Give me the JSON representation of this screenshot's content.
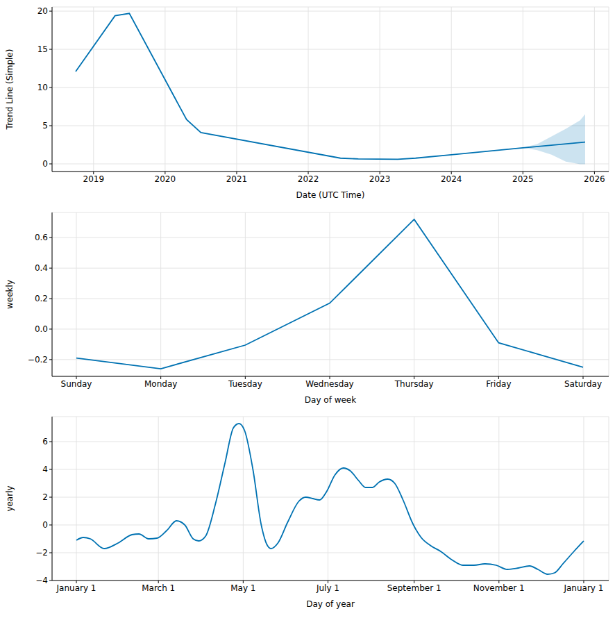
{
  "chart_data": [
    {
      "type": "line",
      "y_label": "Trend Line (Simple)",
      "x_label": "Date (UTC Time)",
      "x": [
        2018.75,
        2019.3,
        2019.5,
        2020.3,
        2020.5,
        2022.45,
        2022.7,
        2023.25,
        2023.5,
        2024.0,
        2025.0,
        2025.87
      ],
      "values": [
        12.1,
        19.4,
        19.7,
        5.8,
        4.1,
        0.75,
        0.65,
        0.6,
        0.75,
        1.2,
        2.1,
        2.85
      ],
      "interval": {
        "x": [
          2025.0,
          2025.2,
          2025.4,
          2025.6,
          2025.8,
          2025.87
        ],
        "lower": [
          2.1,
          1.8,
          1.2,
          0.3,
          -0.05,
          -0.05
        ],
        "upper": [
          2.1,
          2.6,
          3.6,
          4.6,
          5.7,
          6.5
        ]
      },
      "color": "#0072b2",
      "xlim": [
        2018.42,
        2026.2
      ],
      "ylim": [
        -1,
        20.55
      ],
      "xticks": [
        2019,
        2020,
        2021,
        2022,
        2023,
        2024,
        2025,
        2026
      ],
      "yticks": [
        0,
        5,
        10,
        15,
        20
      ],
      "grid": true
    },
    {
      "type": "line",
      "y_label": "weekly",
      "x_label": "Day of week",
      "categories": [
        "Sunday",
        "Monday",
        "Tuesday",
        "Wednesday",
        "Thursday",
        "Friday",
        "Saturday"
      ],
      "values": [
        -0.19,
        -0.26,
        -0.105,
        0.17,
        0.72,
        -0.09,
        -0.25
      ],
      "color": "#0072b2",
      "ylim": [
        -0.31,
        0.765
      ],
      "yticks": [
        {
          "value": -0.2,
          "label": "−0.2"
        },
        {
          "value": 0,
          "label": "0.0"
        },
        0.2,
        0.4,
        0.6
      ],
      "grid": true
    },
    {
      "type": "line",
      "y_label": "yearly",
      "x_label": "Day of year",
      "x": [
        0,
        5,
        10,
        20,
        30,
        40,
        45,
        52,
        58,
        65,
        72,
        78,
        84,
        88,
        93,
        100,
        107,
        113,
        117,
        121,
        127,
        133,
        137,
        140,
        145,
        152,
        160,
        165,
        170,
        175,
        180,
        186,
        192,
        197,
        203,
        208,
        213,
        218,
        224,
        229,
        235,
        242,
        248,
        255,
        262,
        270,
        278,
        286,
        294,
        302,
        310,
        318,
        326,
        332,
        339,
        344,
        350,
        358,
        365
      ],
      "values": [
        -1.1,
        -0.9,
        -1.0,
        -1.7,
        -1.3,
        -0.7,
        -0.65,
        -1.0,
        -0.95,
        -0.4,
        0.3,
        0.0,
        -1.0,
        -1.15,
        -0.8,
        1.5,
        4.5,
        7.0,
        7.3,
        6.8,
        4.0,
        0.0,
        -1.4,
        -1.7,
        -1.3,
        0.2,
        1.7,
        2.0,
        1.9,
        1.8,
        2.4,
        3.6,
        4.1,
        3.9,
        3.2,
        2.7,
        2.7,
        3.1,
        3.3,
        3.0,
        1.8,
        0.1,
        -0.9,
        -1.5,
        -1.9,
        -2.5,
        -2.9,
        -2.9,
        -2.8,
        -2.9,
        -3.2,
        -3.1,
        -2.95,
        -3.2,
        -3.55,
        -3.45,
        -2.8,
        -1.9,
        -1.15
      ],
      "color": "#0072b2",
      "xlim": [
        -17.5,
        383
      ],
      "ylim": [
        -4,
        7.8
      ],
      "xticks": [
        {
          "value": 0,
          "label": "January 1"
        },
        {
          "value": 59,
          "label": "March 1"
        },
        {
          "value": 120,
          "label": "May 1"
        },
        {
          "value": 181,
          "label": "July 1"
        },
        {
          "value": 243,
          "label": "September 1"
        },
        {
          "value": 304,
          "label": "November 1"
        },
        {
          "value": 365,
          "label": "January 1"
        }
      ],
      "yticks": [
        {
          "value": -4,
          "label": "−4"
        },
        {
          "value": -2,
          "label": "−2"
        },
        0,
        2,
        4,
        6
      ],
      "grid": true
    }
  ]
}
